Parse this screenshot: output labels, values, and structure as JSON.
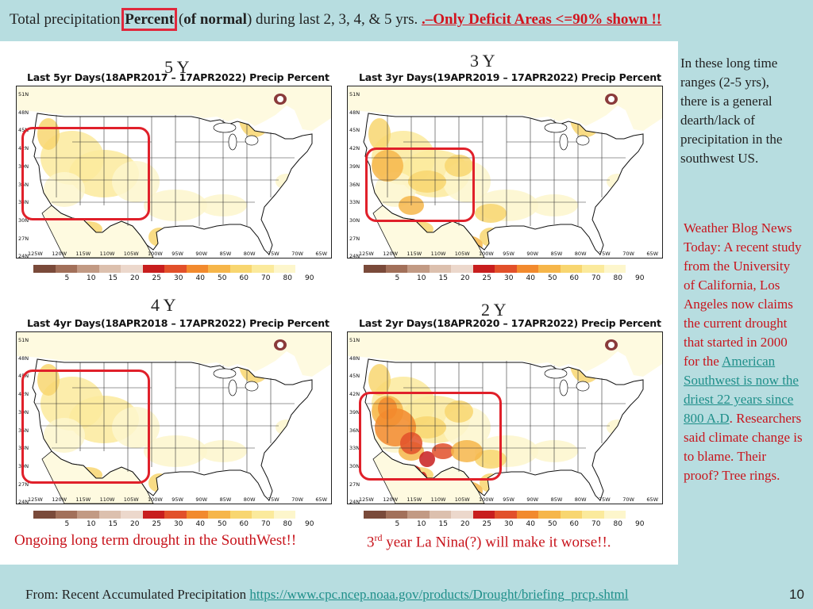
{
  "header": {
    "title_part1": "Total precipitation ",
    "title_percent": "Percent",
    "title_paren_open": " (",
    "title_of_normal": "of normal",
    "title_paren_close": ") during last 2, 3, 4, & 5 yrs. ",
    "title_warning": ".–Only Deficit Areas <=90% shown !!"
  },
  "maps": [
    {
      "id": "5y",
      "period_label": "5 Y",
      "title": "Last 5yr Days(18APR2017 – 17APR2022) Precip Percent",
      "intensity": 1
    },
    {
      "id": "3y",
      "period_label": "3 Y",
      "title": "Last 3yr Days(19APR2019 – 17APR2022) Precip Percent",
      "intensity": 2
    },
    {
      "id": "4y",
      "period_label": "4 Y",
      "title": "Last 4yr Days(18APR2018 – 17APR2022) Precip Percent",
      "intensity": 1
    },
    {
      "id": "2y",
      "period_label": "2 Y",
      "title": "Last 2yr Days(18APR2020 – 17APR2022) Precip Percent",
      "intensity": 3
    }
  ],
  "map_axes": {
    "lat_labels": [
      "51N",
      "48N",
      "45N",
      "42N",
      "39N",
      "36N",
      "33N",
      "30N",
      "27N",
      "24N"
    ],
    "lon_labels": [
      "125W",
      "120W",
      "115W",
      "110W",
      "105W",
      "100W",
      "95W",
      "90W",
      "85W",
      "80W",
      "75W",
      "70W",
      "65W"
    ]
  },
  "colorbar": {
    "ticks": [
      "5",
      "10",
      "15",
      "20",
      "25",
      "30",
      "40",
      "50",
      "60",
      "70",
      "80",
      "90"
    ],
    "colors": [
      "#7a4a3a",
      "#a2705a",
      "#c29a84",
      "#dcc0ae",
      "#ecd8cc",
      "#c81e1e",
      "#e2502a",
      "#f28a2e",
      "#f6b64a",
      "#f8d670",
      "#fbea9c",
      "#fdf6cc"
    ]
  },
  "captions": {
    "left": "Ongoing long term drought in the SouthWest!!",
    "right_num": "3",
    "right_sup": "rd",
    "right_rest": " year La Nina(?) will make it worse!!."
  },
  "side_note": "In these long time ranges (2-5 yrs), there is a general dearth/lack of precipitation in the southwest US.",
  "blog": {
    "intro": "Weather Blog News Today: A recent study from the University of California, Los Angeles now claims the current drought that started in 2000 for the ",
    "link": "American Southwest is now the driest 22 years since 800 A.D",
    "outro": ". Researchers said climate change is to blame. Their proof? Tree rings."
  },
  "footer": {
    "label": "From: Recent Accumulated Precipitation ",
    "url": "https://www.cpc.ncep.noaa.gov/products/Drought/briefing_prcp.shtml"
  },
  "page_number": "10"
}
